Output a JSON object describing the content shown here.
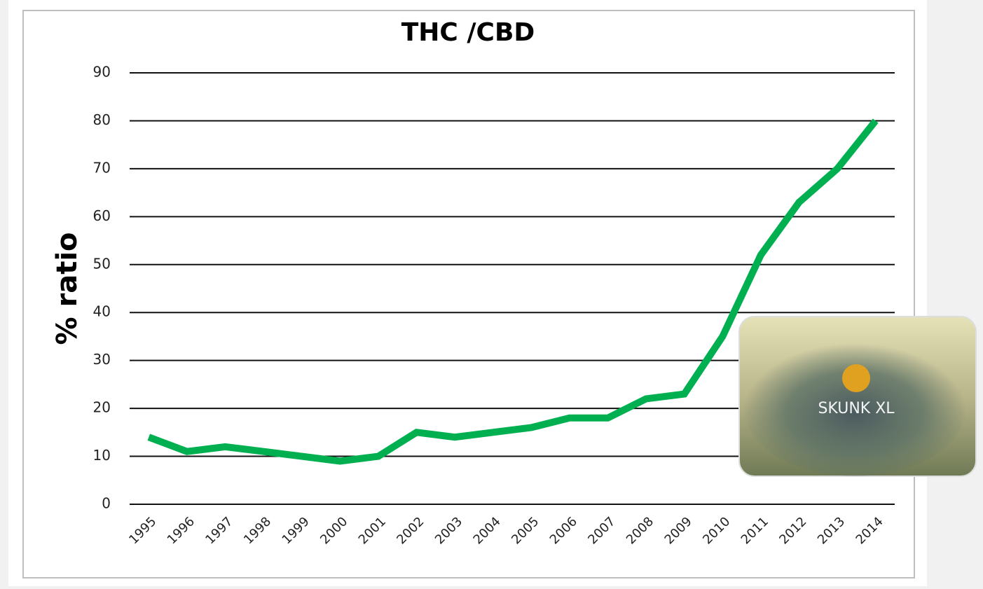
{
  "chart_data": {
    "type": "line",
    "title": "THC /CBD",
    "y_label": "% ratio",
    "categories": [
      "1995",
      "1996",
      "1997",
      "1998",
      "1999",
      "2000",
      "2001",
      "2002",
      "2003",
      "2004",
      "2005",
      "2006",
      "2007",
      "2008",
      "2009",
      "2010",
      "2011",
      "2012",
      "2013",
      "2014"
    ],
    "series": [
      {
        "name": "THC /CBD",
        "color": "#00b050",
        "values": [
          14,
          11,
          12,
          11,
          10,
          9,
          10,
          15,
          14,
          15,
          16,
          18,
          18,
          22,
          23,
          35,
          52,
          63,
          70,
          80
        ]
      }
    ],
    "ylim": [
      0,
      90
    ],
    "yticks": [
      0,
      10,
      20,
      30,
      40,
      50,
      60,
      70,
      80,
      90
    ],
    "grid": true,
    "image_caption": "SKUNK XL"
  }
}
